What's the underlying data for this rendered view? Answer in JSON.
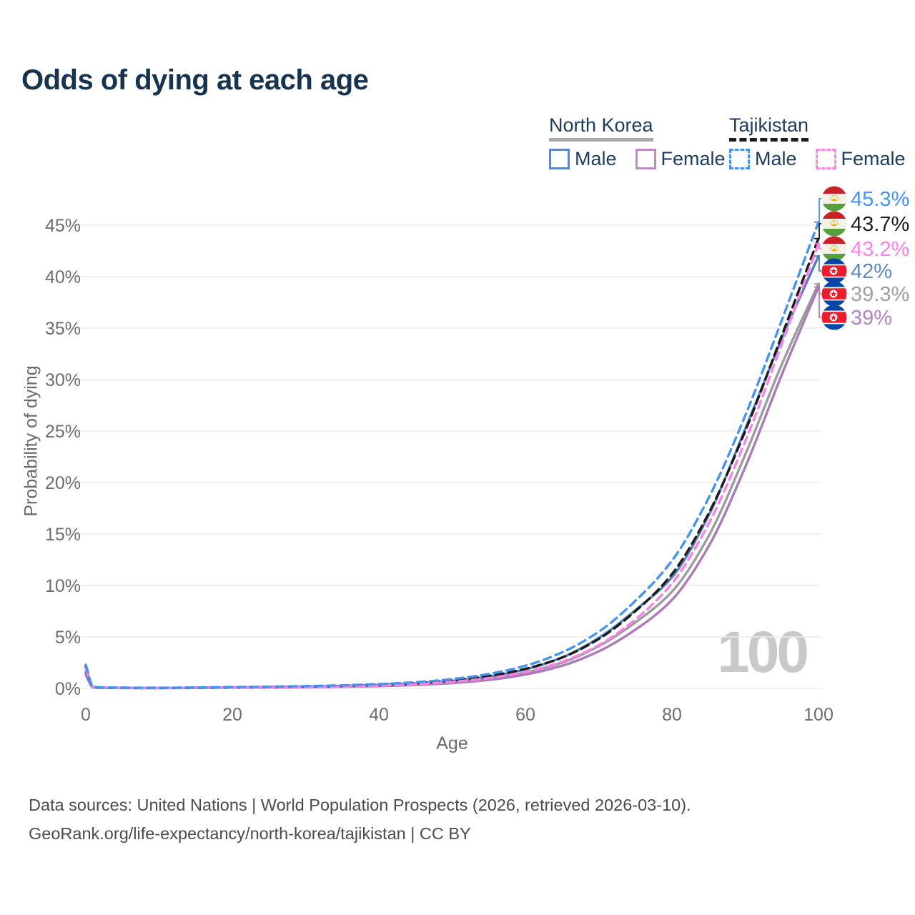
{
  "title": "Odds of dying at each age",
  "watermark": "100",
  "legend": {
    "groups": [
      {
        "label": "North Korea",
        "style": "solid",
        "underline_color": "#a8a8a8",
        "items": [
          {
            "label": "Male",
            "color": "#5e88c4",
            "dashed": false
          },
          {
            "label": "Female",
            "color": "#c08ac8",
            "dashed": false
          }
        ]
      },
      {
        "label": "Tajikistan",
        "style": "dashed",
        "underline_color": "#1c1c1c",
        "items": [
          {
            "label": "Male",
            "color": "#4793f0",
            "dashed": true
          },
          {
            "label": "Female",
            "color": "#ff87e3",
            "dashed": true
          }
        ]
      }
    ]
  },
  "footer": {
    "line1": "Data sources: United Nations | World Population Prospects (2026, retrieved 2026-03-10).",
    "line2": "GeoRank.org/life-expectancy/north-korea/tajikistan | CC BY"
  },
  "chart_data": {
    "type": "line",
    "title": "Odds of dying at each age",
    "xlabel": "Age",
    "ylabel": "Probability of dying",
    "xlim": [
      0,
      100
    ],
    "ylim": [
      0,
      47
    ],
    "grid": "horizontal",
    "xticks": [
      {
        "v": 0,
        "label": "0"
      },
      {
        "v": 20,
        "label": "20"
      },
      {
        "v": 40,
        "label": "40"
      },
      {
        "v": 60,
        "label": "60"
      },
      {
        "v": 80,
        "label": "80"
      },
      {
        "v": 100,
        "label": "100"
      }
    ],
    "yticks": [
      {
        "v": 0,
        "label": "0%"
      },
      {
        "v": 5,
        "label": "5%"
      },
      {
        "v": 10,
        "label": "10%"
      },
      {
        "v": 15,
        "label": "15%"
      },
      {
        "v": 20,
        "label": "20%"
      },
      {
        "v": 25,
        "label": "25%"
      },
      {
        "v": 30,
        "label": "30%"
      },
      {
        "v": 35,
        "label": "35%"
      },
      {
        "v": 40,
        "label": "40%"
      },
      {
        "v": 45,
        "label": "45%"
      }
    ],
    "x": [
      0,
      1,
      2,
      5,
      10,
      15,
      20,
      25,
      30,
      35,
      40,
      45,
      50,
      55,
      60,
      65,
      70,
      75,
      80,
      85,
      90,
      95,
      100
    ],
    "series": [
      {
        "id": "tajikistan-male",
        "country": "Tajikistan",
        "sex": "Male",
        "color": "#4793f0",
        "label_color": "#4793f0",
        "dash": "11 7",
        "flag": "tajikistan",
        "end_label": "45.3%",
        "values": [
          2.3,
          0.18,
          0.1,
          0.07,
          0.06,
          0.09,
          0.13,
          0.17,
          0.22,
          0.3,
          0.42,
          0.6,
          0.9,
          1.4,
          2.2,
          3.5,
          5.5,
          8.5,
          12.4,
          18.5,
          26.5,
          35.8,
          45.3
        ]
      },
      {
        "id": "tajikistan-both",
        "country": "Tajikistan",
        "sex": "Both sexes",
        "color": "#1c1c1c",
        "label_color": "#1c1c1c",
        "dash": "11 7",
        "flag": "tajikistan",
        "end_label": "43.7%",
        "values": [
          2.1,
          0.16,
          0.09,
          0.06,
          0.05,
          0.07,
          0.1,
          0.13,
          0.17,
          0.24,
          0.34,
          0.5,
          0.76,
          1.2,
          1.9,
          3.0,
          4.8,
          7.5,
          11.1,
          17.0,
          25.0,
          34.3,
          43.7
        ]
      },
      {
        "id": "tajikistan-female",
        "country": "Tajikistan",
        "sex": "Female",
        "color": "#fb80e8",
        "label_color": "#fb80e8",
        "dash": "11 7",
        "flag": "tajikistan",
        "end_label": "43.2%",
        "values": [
          1.9,
          0.14,
          0.08,
          0.05,
          0.04,
          0.06,
          0.08,
          0.1,
          0.13,
          0.19,
          0.27,
          0.41,
          0.64,
          1.0,
          1.6,
          2.6,
          4.2,
          6.7,
          10.2,
          16.0,
          24.0,
          33.5,
          43.2
        ]
      },
      {
        "id": "north-korea-male",
        "country": "North Korea",
        "sex": "Male",
        "color": "#5181b8",
        "label_color": "#5d89c0",
        "dash": null,
        "flag": "north-korea",
        "end_label": "42%",
        "values": [
          1.6,
          0.12,
          0.07,
          0.05,
          0.04,
          0.07,
          0.1,
          0.13,
          0.17,
          0.23,
          0.32,
          0.47,
          0.72,
          1.15,
          1.85,
          3.0,
          4.9,
          7.6,
          10.8,
          16.8,
          25.2,
          34.0,
          42.0
        ]
      },
      {
        "id": "north-korea-both",
        "country": "North Korea",
        "sex": "Both sexes",
        "color": "#9c9c9c",
        "label_color": "#9f9f9f",
        "dash": null,
        "flag": "north-korea",
        "end_label": "39.3%",
        "values": [
          1.45,
          0.11,
          0.065,
          0.045,
          0.035,
          0.06,
          0.08,
          0.1,
          0.13,
          0.18,
          0.26,
          0.39,
          0.6,
          0.95,
          1.55,
          2.5,
          4.1,
          6.4,
          9.4,
          14.8,
          22.7,
          31.5,
          39.3
        ]
      },
      {
        "id": "north-korea-female",
        "country": "North Korea",
        "sex": "Female",
        "color": "#ab7bb9",
        "label_color": "#b383c4",
        "dash": null,
        "flag": "north-korea",
        "end_label": "39%",
        "values": [
          1.3,
          0.1,
          0.06,
          0.04,
          0.03,
          0.05,
          0.065,
          0.085,
          0.11,
          0.15,
          0.22,
          0.33,
          0.52,
          0.82,
          1.35,
          2.2,
          3.6,
          5.7,
          8.6,
          13.8,
          21.5,
          30.5,
          39.0
        ]
      }
    ]
  }
}
